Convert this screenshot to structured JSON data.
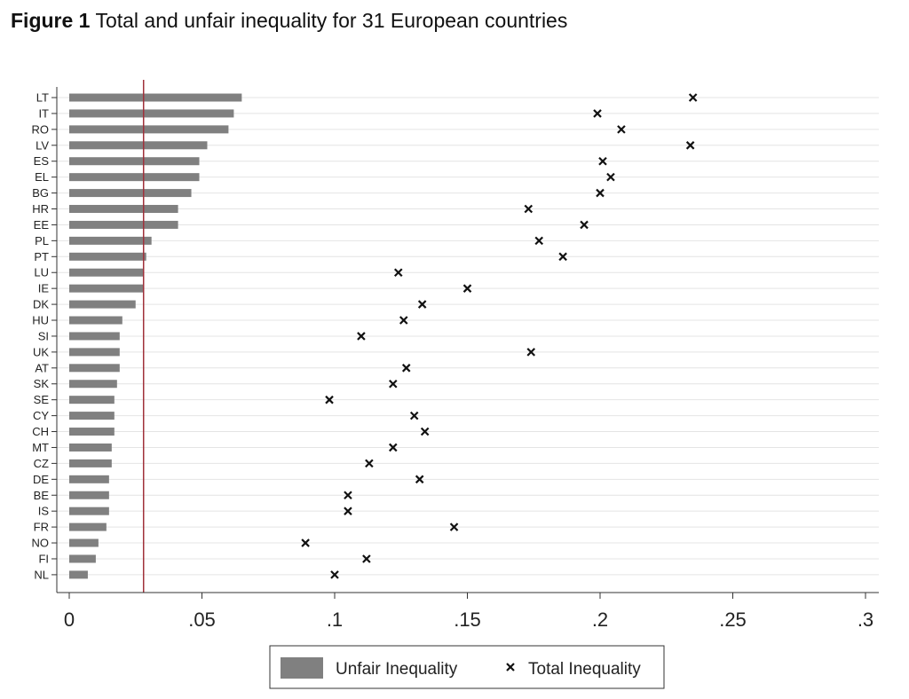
{
  "figure": {
    "label": "Figure 1",
    "title": "Total and unfair inequality for 31 European countries"
  },
  "chart_data": {
    "type": "bar",
    "orientation": "horizontal",
    "categories": [
      "LT",
      "IT",
      "RO",
      "LV",
      "ES",
      "EL",
      "BG",
      "HR",
      "EE",
      "PL",
      "PT",
      "LU",
      "IE",
      "DK",
      "HU",
      "SI",
      "UK",
      "AT",
      "SK",
      "SE",
      "CY",
      "CH",
      "MT",
      "CZ",
      "DE",
      "BE",
      "IS",
      "FR",
      "NO",
      "FI",
      "NL"
    ],
    "series": [
      {
        "name": "Unfair Inequality",
        "type": "bar",
        "color": "#808080",
        "values": [
          0.065,
          0.062,
          0.06,
          0.052,
          0.049,
          0.049,
          0.046,
          0.041,
          0.041,
          0.031,
          0.029,
          0.028,
          0.028,
          0.025,
          0.02,
          0.019,
          0.019,
          0.019,
          0.018,
          0.017,
          0.017,
          0.017,
          0.016,
          0.016,
          0.015,
          0.015,
          0.015,
          0.014,
          0.011,
          0.01,
          0.007
        ]
      },
      {
        "name": "Total Inequality",
        "type": "scatter",
        "marker": "x",
        "color": "#111111",
        "values": [
          0.235,
          0.199,
          0.208,
          0.234,
          0.201,
          0.204,
          0.2,
          0.173,
          0.194,
          0.177,
          0.186,
          0.124,
          0.15,
          0.133,
          0.126,
          0.11,
          0.174,
          0.127,
          0.122,
          0.098,
          0.13,
          0.134,
          0.122,
          0.113,
          0.132,
          0.105,
          0.105,
          0.145,
          0.089,
          0.112,
          0.1
        ]
      }
    ],
    "reference_line": {
      "x": 0.028,
      "color": "#a0303a"
    },
    "x_ticks": [
      0,
      0.05,
      0.1,
      0.15,
      0.2,
      0.25,
      0.3
    ],
    "x_tick_labels": [
      "0",
      ".05",
      ".1",
      ".15",
      ".2",
      ".25",
      ".3"
    ],
    "xlim": [
      0,
      0.3
    ],
    "grid": true,
    "legend_position": "bottom-center"
  }
}
